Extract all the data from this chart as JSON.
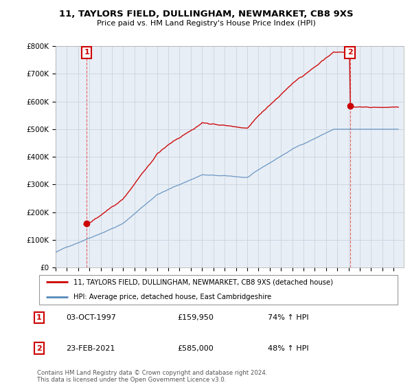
{
  "title": "11, TAYLORS FIELD, DULLINGHAM, NEWMARKET, CB8 9XS",
  "subtitle": "Price paid vs. HM Land Registry's House Price Index (HPI)",
  "ytick_labels": [
    "£0",
    "£100K",
    "£200K",
    "£300K",
    "£400K",
    "£500K",
    "£600K",
    "£700K",
    "£800K"
  ],
  "yticks": [
    0,
    100000,
    200000,
    300000,
    400000,
    500000,
    600000,
    700000,
    800000
  ],
  "legend_line1": "11, TAYLORS FIELD, DULLINGHAM, NEWMARKET, CB8 9XS (detached house)",
  "legend_line2": "HPI: Average price, detached house, East Cambridgeshire",
  "transaction1_date": "03-OCT-1997",
  "transaction1_price": "£159,950",
  "transaction1_hpi": "74% ↑ HPI",
  "transaction1_year": 1997.75,
  "transaction1_value": 159950,
  "transaction2_date": "23-FEB-2021",
  "transaction2_price": "£585,000",
  "transaction2_hpi": "48% ↑ HPI",
  "transaction2_year": 2021.12,
  "transaction2_value": 585000,
  "footnote": "Contains HM Land Registry data © Crown copyright and database right 2024.\nThis data is licensed under the Open Government Licence v3.0.",
  "hpi_color": "#5588bb",
  "property_color": "#cc0000",
  "chart_bg": "#e8eef5",
  "grid_color": "#c8d4e0",
  "vline_color": "#dd4444"
}
